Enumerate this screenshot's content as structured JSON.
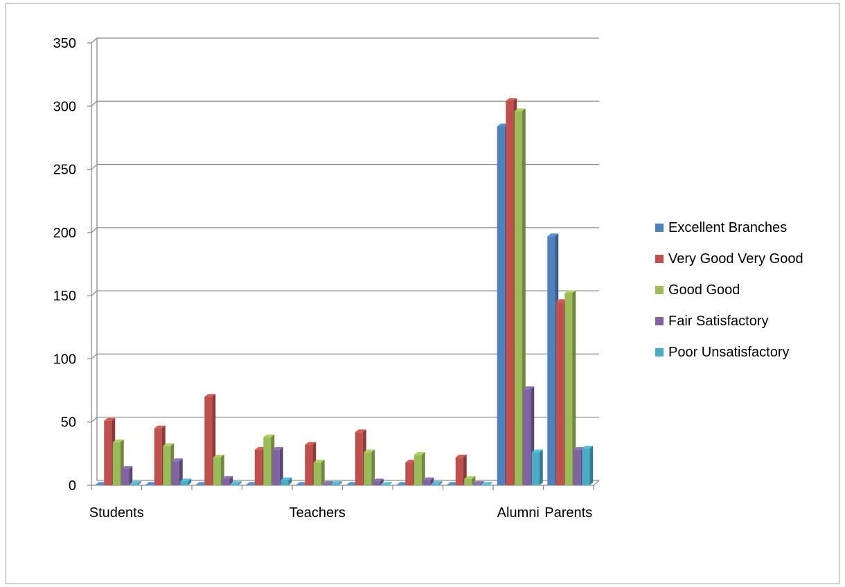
{
  "chart_data": {
    "type": "bar",
    "title": "",
    "xlabel": "",
    "ylabel": "",
    "ylim": [
      0,
      350
    ],
    "yticks": [
      "0",
      "50",
      "100",
      "150",
      "200",
      "250",
      "300",
      "350"
    ],
    "grid": true,
    "legend_position": "right",
    "x_tick_labels": [
      "Students",
      "",
      "",
      "",
      "Teachers",
      "",
      "",
      "",
      "Alumni",
      "Parents"
    ],
    "series": [
      {
        "name": "Excellent Branches",
        "color": "#4f81bd",
        "values": [
          0,
          0,
          0,
          0,
          0,
          0,
          0,
          0,
          284,
          197
        ]
      },
      {
        "name": "Very Good Very Good",
        "color": "#c0504d",
        "values": [
          51,
          45,
          70,
          28,
          32,
          42,
          18,
          22,
          304,
          145
        ]
      },
      {
        "name": "Good Good",
        "color": "#9bbb59",
        "values": [
          34,
          31,
          22,
          38,
          18,
          26,
          24,
          5,
          296,
          152
        ]
      },
      {
        "name": "Fair Satisfactory",
        "color": "#8064a2",
        "values": [
          13,
          19,
          5,
          28,
          1,
          3,
          4,
          1,
          76,
          28
        ]
      },
      {
        "name": "Poor Unsatisfactory",
        "color": "#4bacc6",
        "values": [
          1,
          3,
          1,
          4,
          1,
          0,
          1,
          0,
          26,
          29
        ]
      }
    ]
  }
}
